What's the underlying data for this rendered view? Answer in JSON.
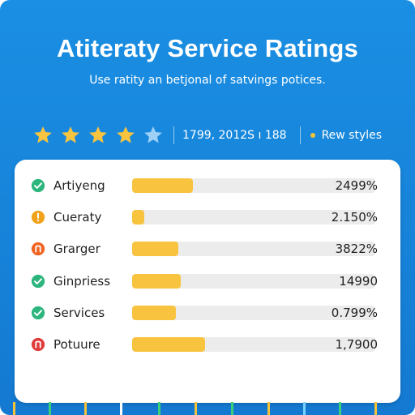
{
  "header": {
    "title": "Atiteraty Service Ratings",
    "subtitle": "Use ratity an betjonal of satvings potices."
  },
  "rating": {
    "stars_filled": 4,
    "stars_total": 5,
    "stats_text": "1799, 2012S ı 188",
    "view_styles_label": "Rew styles"
  },
  "rows": [
    {
      "label": "Artiyeng",
      "value_text": "2499%",
      "fill_fraction": 0.25,
      "status": "check",
      "status_color": "#2cb67d"
    },
    {
      "label": "Cueraty",
      "value_text": "2.150%",
      "fill_fraction": 0.05,
      "status": "warning",
      "status_color": "#f0a21a"
    },
    {
      "label": "Grarger",
      "value_text": "3822%",
      "fill_fraction": 0.19,
      "status": "alert",
      "status_color": "#f06423"
    },
    {
      "label": "Ginpriess",
      "value_text": "14990",
      "fill_fraction": 0.2,
      "status": "check",
      "status_color": "#2cb67d"
    },
    {
      "label": "Services",
      "value_text": "0.799%",
      "fill_fraction": 0.18,
      "status": "check",
      "status_color": "#2cb67d"
    },
    {
      "label": "Potuure",
      "value_text": "1,7900",
      "fill_fraction": 0.3,
      "status": "alert",
      "status_color": "#e03b3b"
    }
  ],
  "colors": {
    "background": "#1a8fe3",
    "bar_fill": "#f8c440",
    "star_filled": "#f8c440",
    "star_empty": "#9fd0f5"
  },
  "icons": {
    "check": "check-circle-icon",
    "warning": "warning-circle-icon",
    "alert": "alert-circle-icon"
  }
}
